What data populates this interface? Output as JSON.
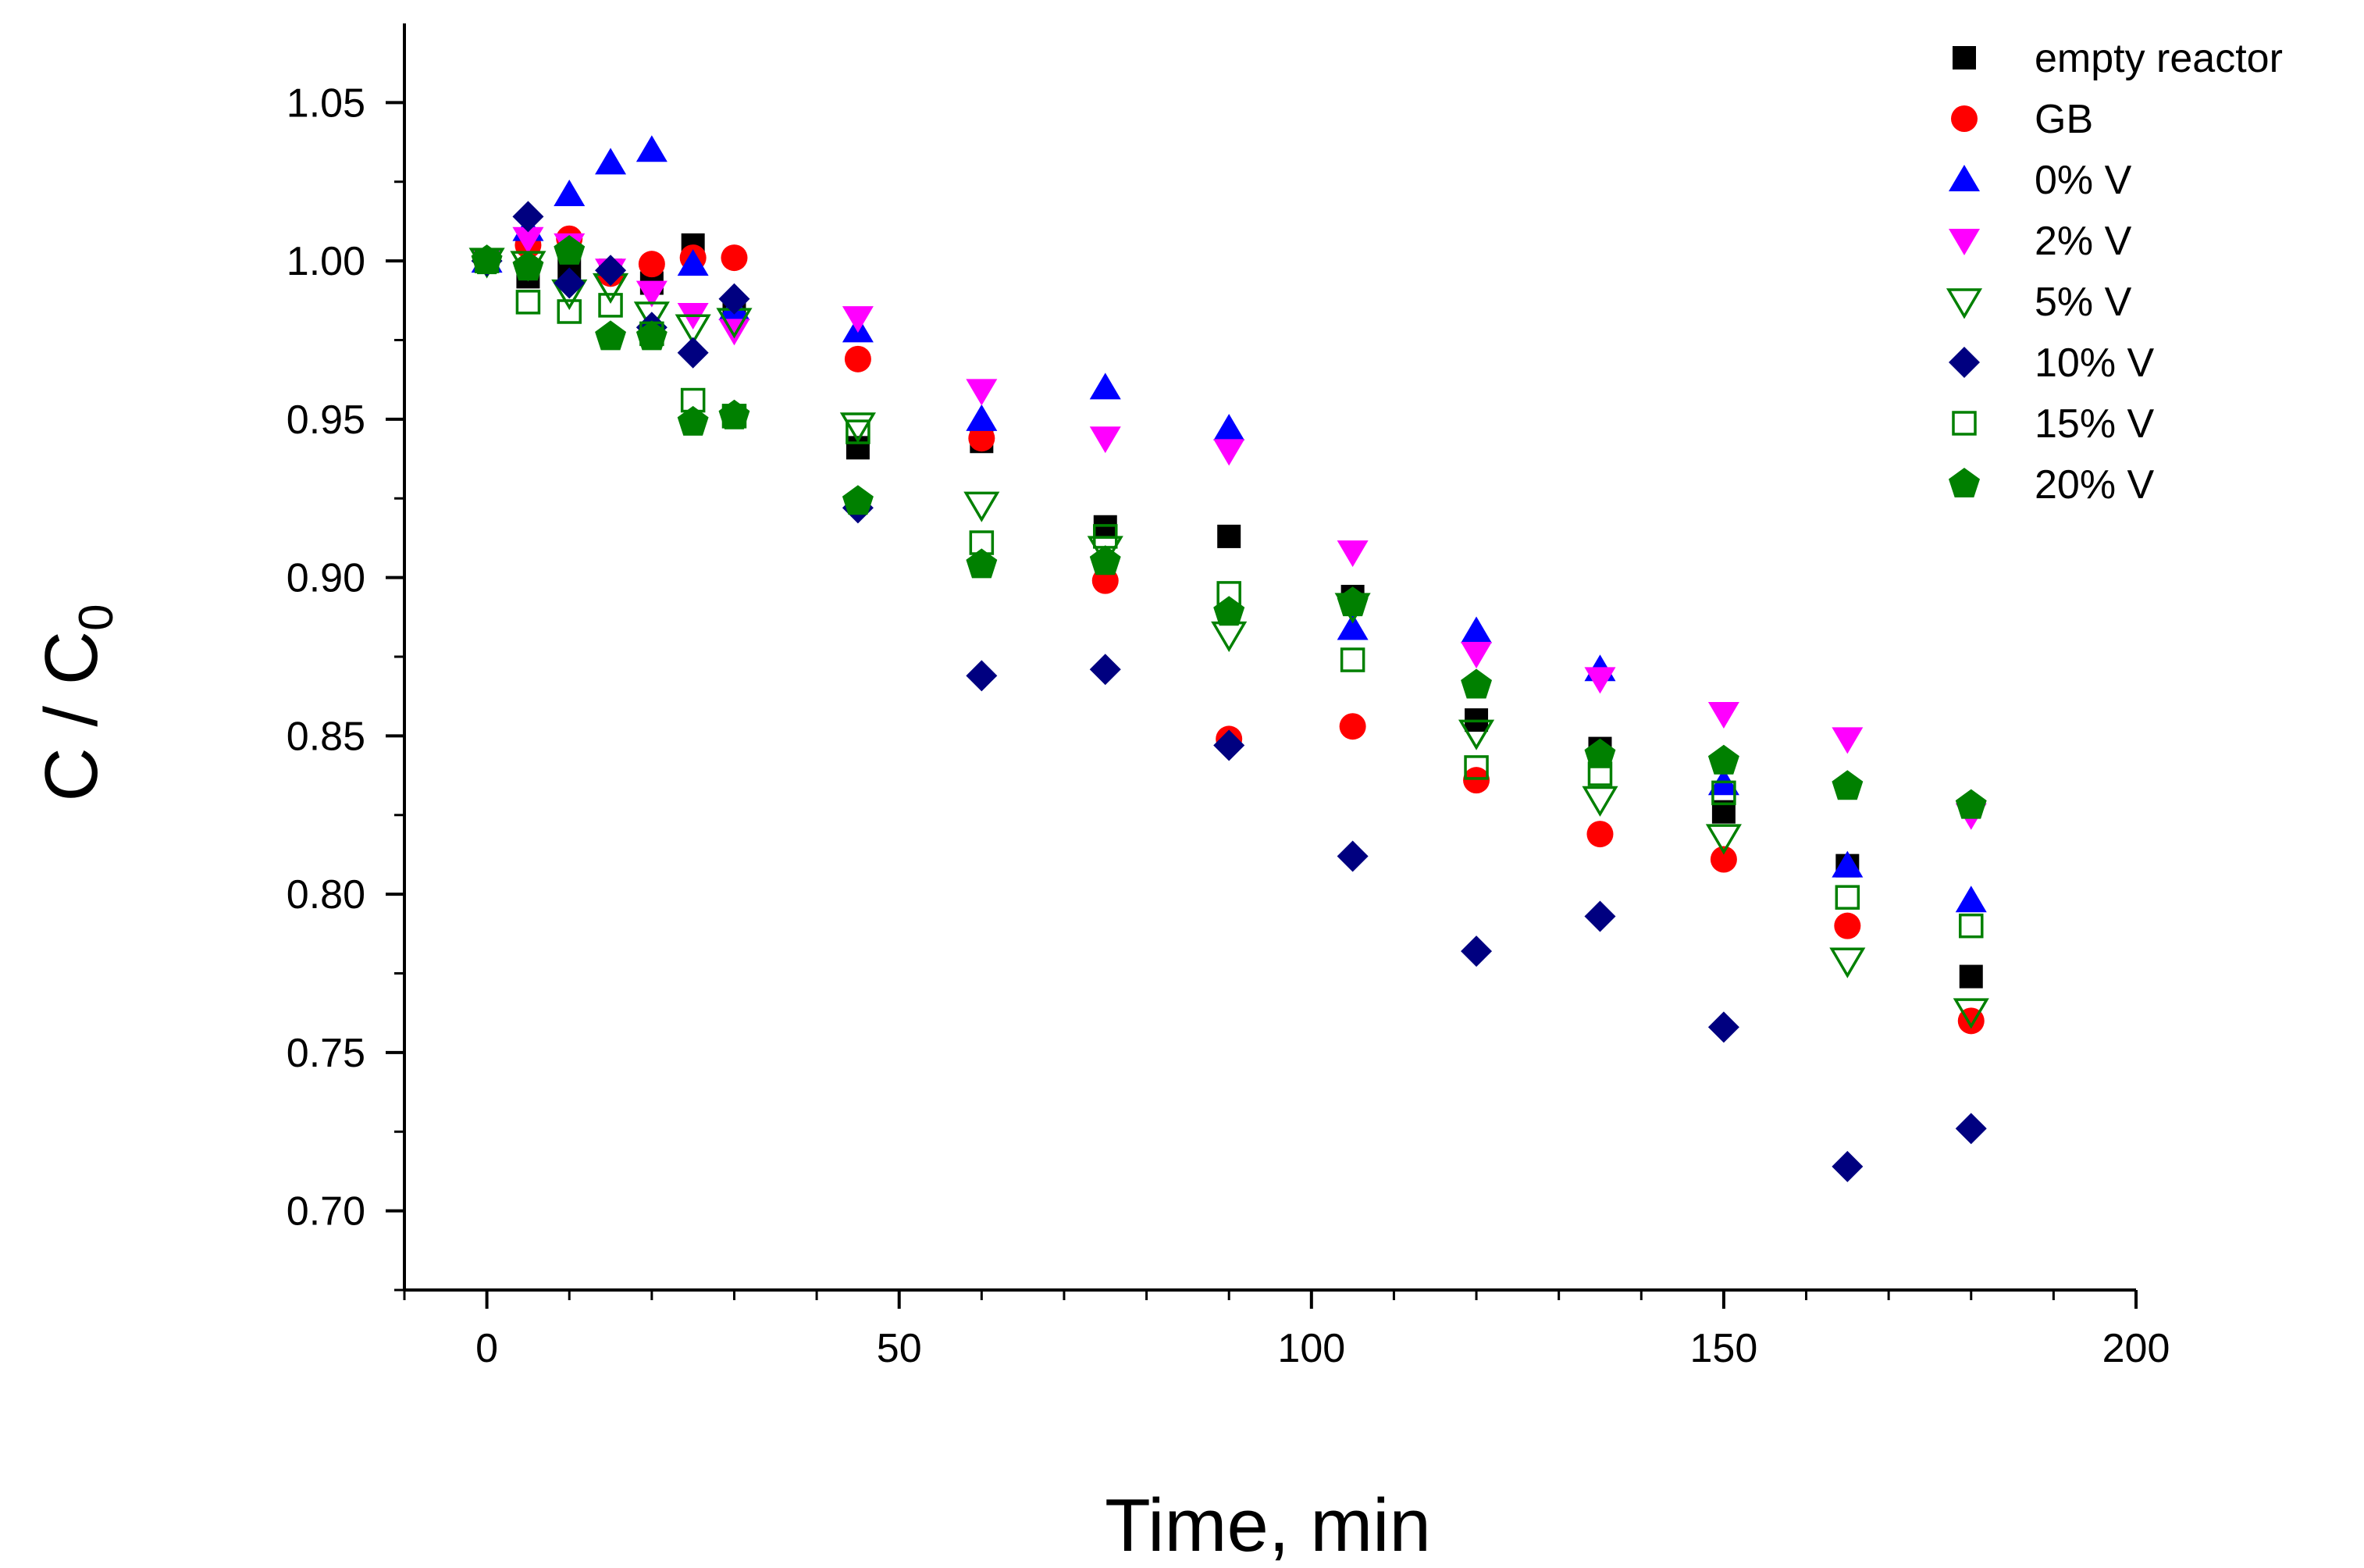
{
  "chart_data": {
    "type": "scatter",
    "title": "",
    "xlabel": "Time, min",
    "ylabel": "C / C",
    "ylabel_sub": "0",
    "xlim": [
      -10,
      200
    ],
    "ylim": [
      0.675,
      1.075
    ],
    "xticks": [
      0,
      50,
      100,
      150,
      200
    ],
    "xtick_labels": [
      "0",
      "50",
      "100",
      "150",
      "200"
    ],
    "yticks": [
      0.7,
      0.75,
      0.8,
      0.85,
      0.9,
      0.95,
      1.0,
      1.05
    ],
    "ytick_labels": [
      "0.70",
      "0.75",
      "0.80",
      "0.85",
      "0.90",
      "0.95",
      "1.00",
      "1.05"
    ],
    "legend_position": "top-right",
    "grid": false,
    "series": [
      {
        "name": "empty reactor",
        "marker": "square",
        "filled": true,
        "color": "#000000",
        "x": [
          0,
          5,
          10,
          15,
          20,
          25,
          30,
          45,
          60,
          75,
          90,
          105,
          120,
          135,
          150,
          165,
          180
        ],
        "y": [
          1.0,
          0.995,
          0.998,
          0.997,
          0.993,
          1.005,
          0.985,
          0.941,
          0.943,
          0.916,
          0.913,
          0.894,
          0.855,
          0.846,
          0.826,
          0.809,
          0.774
        ]
      },
      {
        "name": "GB",
        "marker": "circle",
        "filled": true,
        "color": "#ff0000",
        "x": [
          0,
          5,
          10,
          15,
          20,
          25,
          30,
          45,
          60,
          75,
          90,
          105,
          120,
          135,
          150,
          165,
          180
        ],
        "y": [
          1.0,
          1.005,
          1.007,
          0.996,
          0.999,
          1.001,
          1.001,
          0.969,
          0.944,
          0.899,
          0.849,
          0.853,
          0.836,
          0.819,
          0.811,
          0.79,
          0.76
        ]
      },
      {
        "name": "0% V",
        "marker": "triangle-up",
        "filled": true,
        "color": "#0000ff",
        "x": [
          0,
          5,
          10,
          15,
          20,
          25,
          30,
          45,
          60,
          75,
          90,
          105,
          120,
          135,
          150,
          165,
          180
        ],
        "y": [
          1.0,
          1.01,
          1.021,
          1.031,
          1.035,
          0.999,
          0.985,
          0.978,
          0.95,
          0.96,
          0.947,
          0.884,
          0.883,
          0.871,
          0.835,
          0.809,
          0.798
        ]
      },
      {
        "name": "2% V",
        "marker": "triangle-down",
        "filled": true,
        "color": "#ff00ff",
        "x": [
          0,
          5,
          10,
          15,
          20,
          25,
          30,
          45,
          60,
          75,
          90,
          105,
          120,
          135,
          150,
          165,
          180
        ],
        "y": [
          1.0,
          1.007,
          1.005,
          0.997,
          0.99,
          0.983,
          0.978,
          0.982,
          0.959,
          0.944,
          0.94,
          0.908,
          0.876,
          0.868,
          0.857,
          0.849,
          0.825
        ]
      },
      {
        "name": "5% V",
        "marker": "triangle-down",
        "filled": false,
        "color": "#008000",
        "x": [
          0,
          5,
          10,
          15,
          20,
          25,
          30,
          45,
          60,
          75,
          90,
          105,
          120,
          135,
          150,
          165,
          180
        ],
        "y": [
          1.0,
          0.999,
          0.99,
          0.992,
          0.983,
          0.979,
          0.981,
          0.948,
          0.923,
          0.909,
          0.882,
          0.891,
          0.851,
          0.83,
          0.818,
          0.779,
          0.763
        ]
      },
      {
        "name": "10% V",
        "marker": "diamond",
        "filled": true,
        "color": "#000080",
        "x": [
          0,
          5,
          10,
          15,
          20,
          25,
          30,
          45,
          60,
          75,
          90,
          105,
          120,
          135,
          150,
          165,
          180
        ],
        "y": [
          1.0,
          1.014,
          0.993,
          0.997,
          0.979,
          0.971,
          0.988,
          0.922,
          0.869,
          0.871,
          0.847,
          0.812,
          0.782,
          0.793,
          0.758,
          0.714,
          0.726
        ]
      },
      {
        "name": "15% V",
        "marker": "square",
        "filled": false,
        "color": "#008000",
        "x": [
          0,
          5,
          10,
          15,
          20,
          25,
          30,
          45,
          60,
          75,
          90,
          105,
          120,
          135,
          150,
          165,
          180
        ],
        "y": [
          1.0,
          0.987,
          0.984,
          0.986,
          0.977,
          0.956,
          0.951,
          0.946,
          0.911,
          0.913,
          0.895,
          0.874,
          0.84,
          0.838,
          0.832,
          0.799,
          0.79
        ]
      },
      {
        "name": "20% V",
        "marker": "pentagon",
        "filled": true,
        "color": "#008000",
        "x": [
          0,
          5,
          10,
          15,
          20,
          25,
          30,
          45,
          60,
          75,
          90,
          105,
          120,
          135,
          150,
          165,
          180
        ],
        "y": [
          1.0,
          0.998,
          1.003,
          0.976,
          0.976,
          0.949,
          0.951,
          0.924,
          0.904,
          0.905,
          0.889,
          0.892,
          0.866,
          0.844,
          0.842,
          0.834,
          0.828
        ]
      }
    ]
  }
}
